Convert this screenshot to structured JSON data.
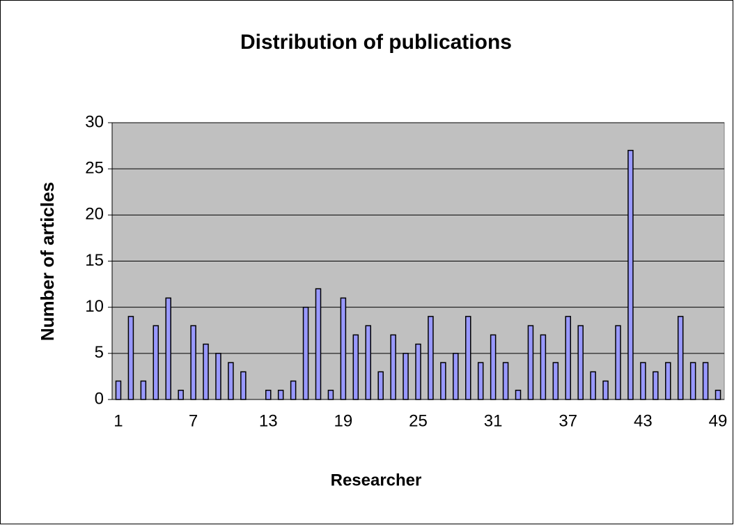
{
  "chart_data": {
    "type": "bar",
    "title": "Distribution of publications",
    "x_label": "Researcher",
    "y_label": "Number of articles",
    "categories": [
      "1",
      null,
      null,
      null,
      null,
      null,
      "7",
      null,
      null,
      null,
      null,
      null,
      "13",
      null,
      null,
      null,
      null,
      null,
      "19",
      null,
      null,
      null,
      null,
      null,
      "25",
      null,
      null,
      null,
      null,
      null,
      "31",
      null,
      null,
      null,
      null,
      null,
      "37",
      null,
      null,
      null,
      null,
      null,
      "43",
      null,
      null,
      null,
      null,
      null,
      "49"
    ],
    "values": [
      2,
      9,
      2,
      8,
      11,
      1,
      8,
      6,
      5,
      4,
      3,
      0,
      1,
      1,
      2,
      10,
      12,
      1,
      11,
      7,
      8,
      3,
      7,
      5,
      6,
      9,
      4,
      5,
      9,
      4,
      7,
      4,
      1,
      8,
      7,
      4,
      9,
      8,
      3,
      2,
      8,
      27,
      4,
      3,
      4,
      9,
      4,
      4,
      1
    ],
    "color": "#9999ff",
    "plot_background": "#c0c0c0",
    "ylim": [
      0,
      30
    ],
    "yticks": [
      0,
      5,
      10,
      15,
      20,
      25,
      30
    ],
    "grid": true
  }
}
